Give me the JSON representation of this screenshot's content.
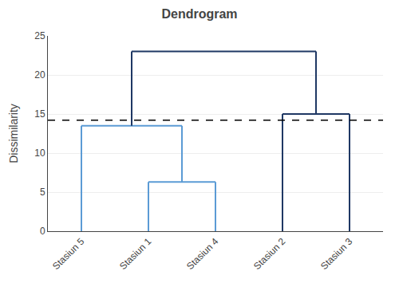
{
  "chart_data": {
    "type": "dendrogram",
    "title": "Dendrogram",
    "y_label": "Dissimilarity",
    "categories": [
      "Stasiun 5",
      "Stasiun 1",
      "Stasiun 4",
      "Stasiun 2",
      "Stasiun 3"
    ],
    "tree": {
      "height": 23.0,
      "color": "#1F3864",
      "children": [
        {
          "height": 13.5,
          "color": "#5B9BD5",
          "children": [
            "Stasiun 5",
            {
              "height": 6.3,
              "color": "#5B9BD5",
              "children": [
                "Stasiun 1",
                "Stasiun 4"
              ]
            }
          ]
        },
        {
          "height": 15.0,
          "color": "#1F3864",
          "children": [
            "Stasiun 2",
            "Stasiun 3"
          ]
        }
      ]
    },
    "cut_height": 14.2,
    "ylim": [
      0,
      25
    ],
    "yticks": [
      0,
      5,
      10,
      15,
      20,
      25
    ],
    "grid": true
  }
}
